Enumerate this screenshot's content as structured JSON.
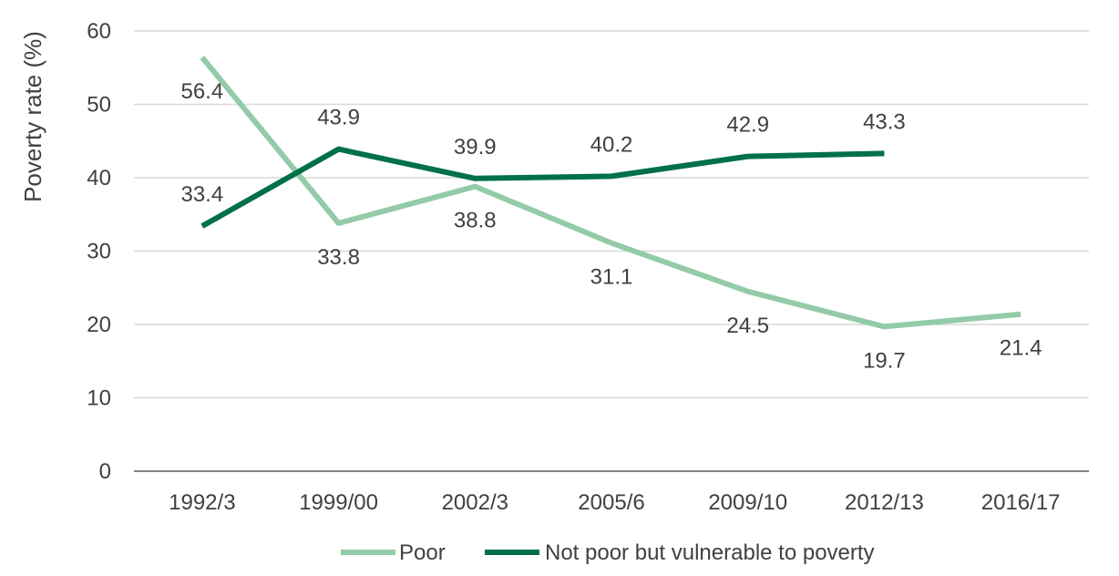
{
  "chart_data": {
    "type": "line",
    "categories": [
      "1992/3",
      "1999/00",
      "2002/3",
      "2005/6",
      "2009/10",
      "2012/13",
      "2016/17"
    ],
    "series": [
      {
        "name": "Poor",
        "color": "#93cba8",
        "values": [
          56.4,
          33.8,
          38.8,
          31.1,
          24.5,
          19.7,
          21.4
        ],
        "labels": [
          "56.4",
          "33.8",
          "38.8",
          "31.1",
          "24.5",
          "19.7",
          "21.4"
        ],
        "label_side": [
          "below",
          "below",
          "below",
          "below",
          "below",
          "below",
          "below"
        ]
      },
      {
        "name": "Not poor but vulnerable to poverty",
        "color": "#00704a",
        "values": [
          33.4,
          43.9,
          39.9,
          40.2,
          42.9,
          43.3,
          null
        ],
        "labels": [
          "33.4",
          "43.9",
          "39.9",
          "40.2",
          "42.9",
          "43.3",
          null
        ],
        "label_side": [
          "above",
          "above",
          "above",
          "above",
          "above",
          "above",
          null
        ]
      }
    ],
    "title": "",
    "xlabel": "",
    "ylabel": "Poverty rate (%)",
    "ylim": [
      0,
      60
    ],
    "yticks": [
      "0",
      "10",
      "20",
      "30",
      "40",
      "50",
      "60"
    ],
    "grid": true,
    "legend_position": "bottom"
  }
}
